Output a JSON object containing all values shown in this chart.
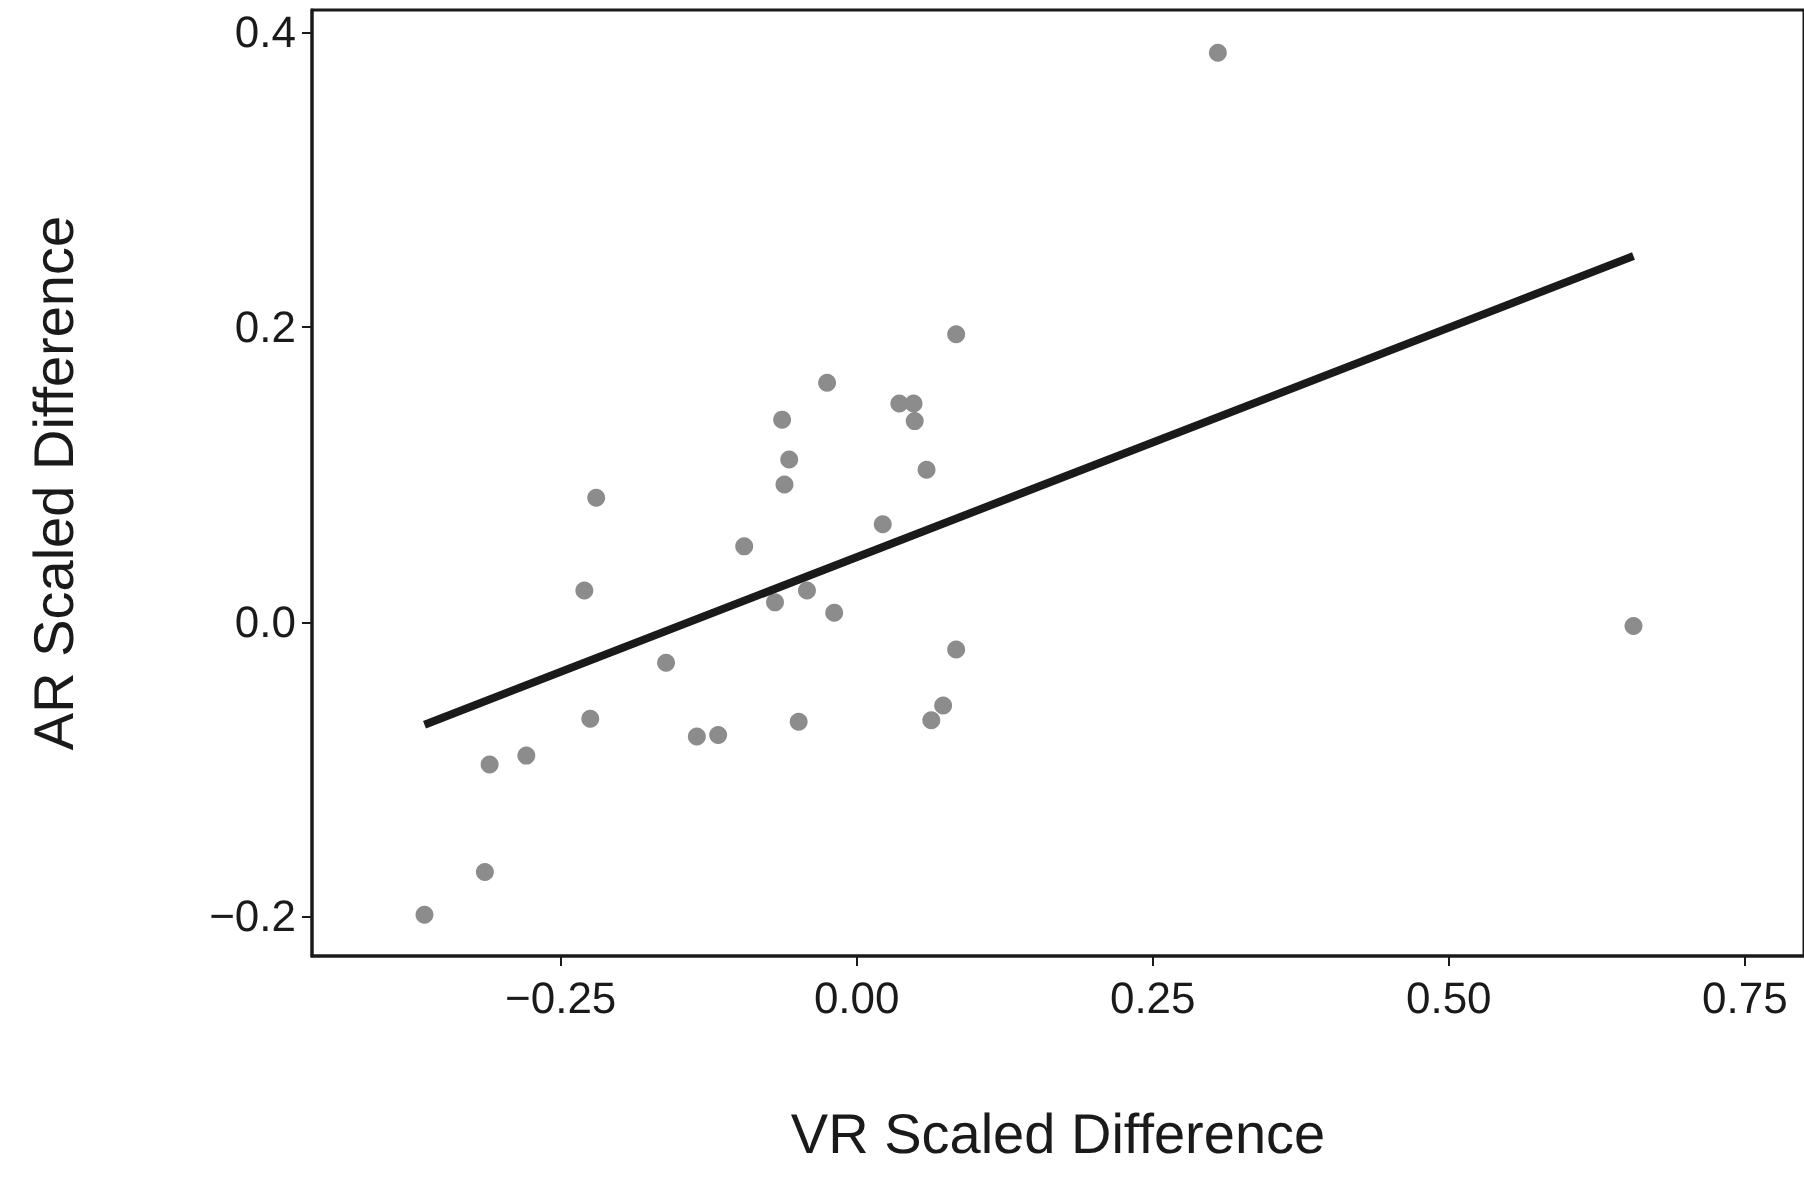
{
  "chart_data": {
    "type": "scatter",
    "xlabel": "VR Scaled Difference",
    "ylabel": "AR Scaled Difference",
    "xlim": [
      -0.46,
      0.8
    ],
    "xticks": [
      {
        "value": -0.25,
        "label": "−0.25"
      },
      {
        "value": 0,
        "label": "0.00"
      },
      {
        "value": 0.25,
        "label": "0.25"
      },
      {
        "value": 0.5,
        "label": "0.50"
      },
      {
        "value": 0.75,
        "label": "0.75"
      }
    ],
    "ylim": [
      -0.227,
      0.415
    ],
    "yticks": [
      {
        "value": -0.2,
        "label": "−0.2"
      },
      {
        "value": 0,
        "label": "0.0"
      },
      {
        "value": 0.2,
        "label": "0.2"
      },
      {
        "value": 0.4,
        "label": "0.4"
      }
    ],
    "grid": false,
    "marker": "circle",
    "series": [
      {
        "color": "#8c8c8c",
        "x": [
          0.084,
          -0.025,
          0.036,
          0.048,
          0.049,
          -0.063,
          -0.057,
          -0.061,
          0.059,
          -0.22,
          0.022,
          -0.095,
          -0.23,
          -0.069,
          -0.042,
          -0.019,
          0.084,
          -0.161,
          -0.225,
          0.073,
          0.063,
          -0.049,
          -0.135,
          -0.117,
          -0.279,
          -0.31,
          -0.314,
          -0.365,
          0.305,
          0.656
        ],
        "values": [
          0.195,
          0.162,
          0.148,
          0.148,
          0.136,
          0.137,
          0.11,
          0.093,
          0.103,
          0.084,
          0.066,
          0.051,
          0.021,
          0.013,
          0.021,
          0.006,
          -0.019,
          -0.028,
          -0.066,
          -0.057,
          -0.067,
          -0.068,
          -0.078,
          -0.077,
          -0.091,
          -0.097,
          -0.17,
          -0.199,
          0.386,
          -0.003
        ]
      },
      {
        "type": "line",
        "color": "#1a1a1a",
        "marker": "none",
        "line_style": "solid",
        "x": [
          -0.365,
          0.656
        ],
        "values": [
          -0.07,
          0.248
        ]
      }
    ]
  }
}
